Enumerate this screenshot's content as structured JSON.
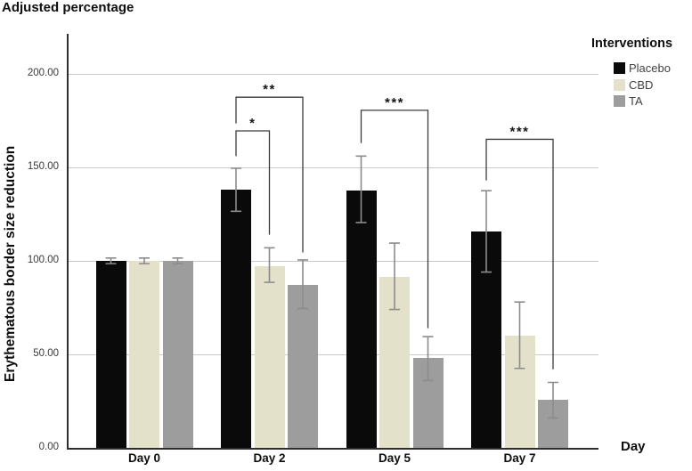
{
  "chart_data": {
    "type": "bar",
    "title": "Adjusted percentage",
    "xlabel": "Day",
    "ylabel": "Erythematous border size reduction",
    "legend_title": "Interventions",
    "legend_position": "top-right",
    "grid": "horizontal",
    "gridline_color": "#c9c9c9",
    "axis_color": "#2e2e2e",
    "error_bar_color": "#8c8c8c",
    "bracket_color": "#3b3b3b",
    "categories": [
      "Day 0",
      "Day 2",
      "Day 5",
      "Day 7"
    ],
    "yticks": [
      0,
      50,
      100,
      150,
      200
    ],
    "ytick_labels": [
      "0.00",
      "50.00",
      "100.00",
      "150.00",
      "200.00"
    ],
    "ylim": [
      0,
      221.4
    ],
    "series": [
      {
        "name": "Placebo",
        "color": "#0a0a0a",
        "values": [
          100,
          138,
          137.5,
          115.5
        ],
        "error_low": [
          98.5,
          126.5,
          120.5,
          94
        ],
        "error_high": [
          101.5,
          149.5,
          156,
          137.5
        ]
      },
      {
        "name": "CBD",
        "color": "#e3e1ca",
        "values": [
          100,
          97,
          91.5,
          60
        ],
        "error_low": [
          98.5,
          88.5,
          74,
          42.5
        ],
        "error_high": [
          101.5,
          107,
          109.5,
          78
        ]
      },
      {
        "name": "TA",
        "color": "#9d9d9d",
        "values": [
          100,
          87,
          48,
          25.5
        ],
        "error_low": [
          98.5,
          74.5,
          36,
          16
        ],
        "error_high": [
          101.5,
          100.5,
          59.5,
          35
        ]
      }
    ],
    "annotations": [
      {
        "label": "*",
        "category_index": 1,
        "from_series": 0,
        "to_series": 1,
        "top": 169.5,
        "from_leg_bottom": 156,
        "to_leg_bottom": 114
      },
      {
        "label": "**",
        "category_index": 1,
        "from_series": 0,
        "to_series": 2,
        "top": 187.5,
        "from_leg_bottom": 173.5,
        "to_leg_bottom": 104.5
      },
      {
        "label": "***",
        "category_index": 2,
        "from_series": 0,
        "to_series": 2,
        "top": 180.5,
        "from_leg_bottom": 163,
        "to_leg_bottom": 64
      },
      {
        "label": "***",
        "category_index": 3,
        "from_series": 0,
        "to_series": 2,
        "top": 165,
        "from_leg_bottom": 143,
        "to_leg_bottom": 42
      }
    ]
  }
}
